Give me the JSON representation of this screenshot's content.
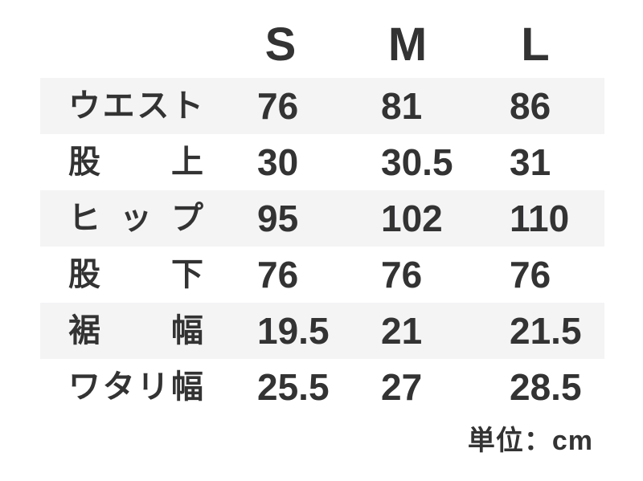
{
  "chart_data": {
    "type": "table",
    "title": "",
    "columns": [
      "S",
      "M",
      "L"
    ],
    "row_labels": [
      "ウエスト",
      "股上",
      "ヒップ",
      "股下",
      "裾幅",
      "ワタリ幅"
    ],
    "rows": [
      [
        76,
        81,
        86
      ],
      [
        30,
        30.5,
        31
      ],
      [
        95,
        102,
        110
      ],
      [
        76,
        76,
        76
      ],
      [
        19.5,
        21,
        21.5
      ],
      [
        25.5,
        27,
        28.5
      ]
    ],
    "unit": "cm",
    "layout": {
      "stripe_rows": [
        0,
        2,
        4
      ],
      "legend": "none",
      "grid": "off"
    }
  },
  "table": {
    "columns": [
      "S",
      "M",
      "L"
    ],
    "rows": [
      {
        "label": "ウエスト",
        "values": [
          "76",
          "81",
          "86"
        ]
      },
      {
        "label": "股上",
        "values": [
          "30",
          "30.5",
          "31"
        ]
      },
      {
        "label": "ヒップ",
        "values": [
          "95",
          "102",
          "110"
        ]
      },
      {
        "label": "股下",
        "values": [
          "76",
          "76",
          "76"
        ]
      },
      {
        "label": "裾幅",
        "values": [
          "19.5",
          "21",
          "21.5"
        ]
      },
      {
        "label": "ワタリ幅",
        "values": [
          "25.5",
          "27",
          "28.5"
        ]
      }
    ],
    "unit_note": "単位：cm",
    "colors": {
      "text": "#333333",
      "stripe": "#f4f4f5",
      "background": "#ffffff"
    }
  }
}
